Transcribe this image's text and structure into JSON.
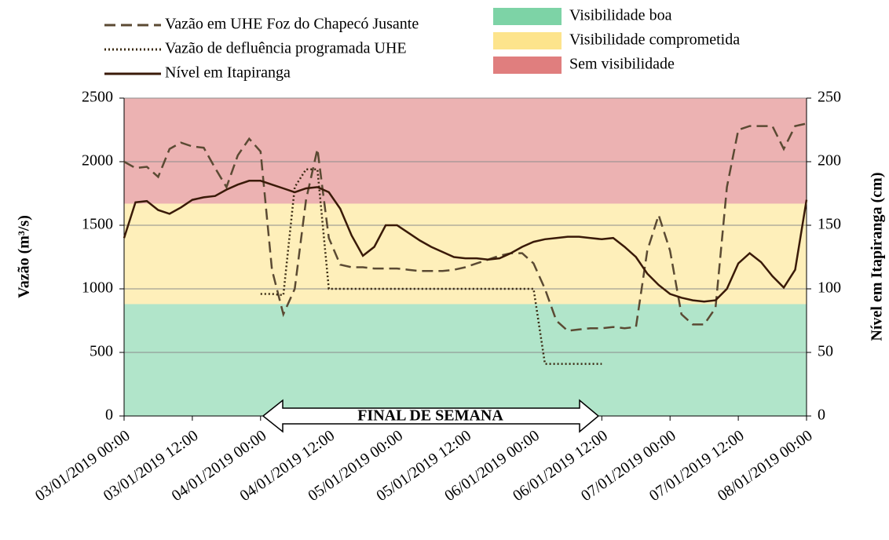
{
  "chart_data": {
    "type": "line",
    "x_label": null,
    "y_label": "Vazão (m³/s)",
    "y2_label": "Nível em Itapiranga (cm)",
    "annotation": "FINAL DE SEMANA",
    "categories": [
      "03/01/2019 00:00",
      null,
      null,
      null,
      null,
      null,
      "03/01/2019 12:00",
      null,
      null,
      null,
      null,
      null,
      "04/01/2019 00:00",
      null,
      null,
      null,
      null,
      null,
      "04/01/2019 12:00",
      null,
      null,
      null,
      null,
      null,
      "05/01/2019 00:00",
      null,
      null,
      null,
      null,
      null,
      "05/01/2019 12:00",
      null,
      null,
      null,
      null,
      null,
      "06/01/2019 00:00",
      null,
      null,
      null,
      null,
      null,
      "06/01/2019 12:00",
      null,
      null,
      null,
      null,
      null,
      "07/01/2019 00:00",
      null,
      null,
      null,
      null,
      null,
      "07/01/2019 12:00",
      null,
      null,
      null,
      null,
      null,
      "08/01/2019 00:00"
    ],
    "xtick_label_colors": [
      "#bfbfbf",
      "#bfbfbf",
      "#000000",
      "#000000",
      "#000000",
      "#000000",
      "#000000",
      "#000000",
      "#bfbfbf",
      "#bfbfbf",
      "#bfbfbf"
    ],
    "bands": [
      {
        "name": "Visibilidade  boa",
        "color": "#7dd3a6",
        "from": 0,
        "to": 880
      },
      {
        "name": "Visibilidade  comprometida",
        "color": "#fde48c",
        "from": 880,
        "to": 1670
      },
      {
        "name": "Sem visibilidade",
        "color": "#e07e7e",
        "from": 1670,
        "to": 2500
      }
    ],
    "series": [
      {
        "name": "Vazão em UHE Foz do Chapecó Jusante",
        "color": "#5b4a33",
        "dash": "dashed",
        "values": [
          2000,
          1950,
          1960,
          1880,
          2100,
          2150,
          2120,
          2110,
          1950,
          1800,
          2050,
          2180,
          2080,
          1150,
          800,
          1000,
          1700,
          2100,
          1400,
          1190,
          1170,
          1170,
          1160,
          1160,
          1160,
          1150,
          1140,
          1140,
          1140,
          1150,
          1170,
          1200,
          1230,
          1260,
          1280,
          1280,
          1200,
          1000,
          750,
          670,
          680,
          690,
          690,
          700,
          690,
          700,
          1300,
          1580,
          1300,
          800,
          720,
          720,
          850,
          1800,
          2250,
          2280,
          2280,
          2280,
          2100,
          2280,
          2300
        ]
      },
      {
        "name": "Vazão de defluência programada UHE",
        "color": "#3a2a12",
        "dash": "dotted",
        "values": [
          null,
          null,
          null,
          null,
          null,
          null,
          null,
          null,
          null,
          null,
          null,
          null,
          960,
          960,
          950,
          1800,
          1940,
          1940,
          1000,
          1000,
          1000,
          1000,
          1000,
          1000,
          1000,
          1000,
          1000,
          1000,
          1000,
          1000,
          1000,
          1000,
          1000,
          1000,
          1000,
          1000,
          1000,
          410,
          410,
          410,
          410,
          410,
          410,
          null,
          null,
          null,
          null,
          null,
          null,
          null,
          null,
          null,
          null,
          null,
          null,
          null,
          null,
          null,
          null,
          null,
          null
        ]
      },
      {
        "name": "Nível em Itapiranga",
        "color": "#3a1a08",
        "dash": "solid",
        "axis": "y2",
        "values": [
          140,
          168,
          169,
          162,
          159,
          164,
          170,
          172,
          173,
          178,
          182,
          185,
          185,
          182,
          179,
          176,
          179,
          180,
          176,
          163,
          142,
          126,
          133,
          150,
          150,
          144,
          138,
          133,
          129,
          125,
          124,
          124,
          123,
          124,
          128,
          133,
          137,
          139,
          140,
          141,
          141,
          140,
          139,
          140,
          133,
          125,
          112,
          103,
          96,
          93,
          91,
          90,
          91,
          100,
          120,
          128,
          121,
          110,
          101,
          115,
          170
        ]
      }
    ],
    "ylim": [
      0,
      2500
    ],
    "yticks": [
      0,
      500,
      1000,
      1500,
      2000,
      2500
    ],
    "y2lim": [
      0,
      250
    ],
    "y2ticks": [
      0,
      50,
      100,
      150,
      200,
      250
    ],
    "grid": true
  }
}
